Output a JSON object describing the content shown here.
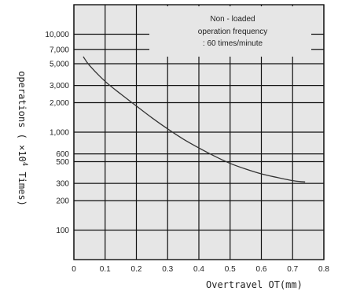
{
  "chart_data": {
    "type": "line",
    "title": "",
    "xlabel": "Overtravel OT(mm)",
    "ylabel": "operations (×10⁴ Times)",
    "ylabel_parts": {
      "pre": "operations ( ×10",
      "sup": "4",
      "post": " Times)"
    },
    "xlim": [
      0,
      0.8
    ],
    "x_ticks": [
      {
        "value": 0,
        "label": "0"
      },
      {
        "value": 0.1,
        "label": "0.1"
      },
      {
        "value": 0.2,
        "label": "0.2"
      },
      {
        "value": 0.3,
        "label": "0.3"
      },
      {
        "value": 0.4,
        "label": "0.4"
      },
      {
        "value": 0.5,
        "label": "0.5"
      },
      {
        "value": 0.6,
        "label": "0.6"
      },
      {
        "value": 0.7,
        "label": "0.7"
      },
      {
        "value": 0.8,
        "label": "0.8"
      }
    ],
    "y_scale": "log",
    "y_ticks": [
      {
        "value": 100,
        "label": "100"
      },
      {
        "value": 200,
        "label": "200"
      },
      {
        "value": 300,
        "label": "300"
      },
      {
        "value": 500,
        "label": "500"
      },
      {
        "value": 600,
        "label": "600"
      },
      {
        "value": 1000,
        "label": "1,000"
      },
      {
        "value": 2000,
        "label": "2,000"
      },
      {
        "value": 3000,
        "label": "3,000"
      },
      {
        "value": 5000,
        "label": "5,000"
      },
      {
        "value": 7000,
        "label": "7,000"
      },
      {
        "value": 10000,
        "label": "10,000"
      }
    ],
    "grid": true,
    "series": [
      {
        "x": [
          0.03,
          0.05,
          0.1,
          0.15,
          0.2,
          0.25,
          0.3,
          0.35,
          0.4,
          0.45,
          0.5,
          0.55,
          0.6,
          0.65,
          0.7,
          0.74
        ],
        "values": [
          5900,
          4800,
          3300,
          2450,
          1850,
          1400,
          1080,
          850,
          690,
          570,
          480,
          420,
          375,
          345,
          320,
          310
        ]
      }
    ],
    "annotation": {
      "lines": [
        "Non - loaded",
        "operation frequency",
        ": 60 times/minute"
      ]
    },
    "colors": {
      "plot_background": "#e6e6e6",
      "grid": "#111111",
      "line": "#333333",
      "annotation_background": "#e6e6e6"
    }
  }
}
